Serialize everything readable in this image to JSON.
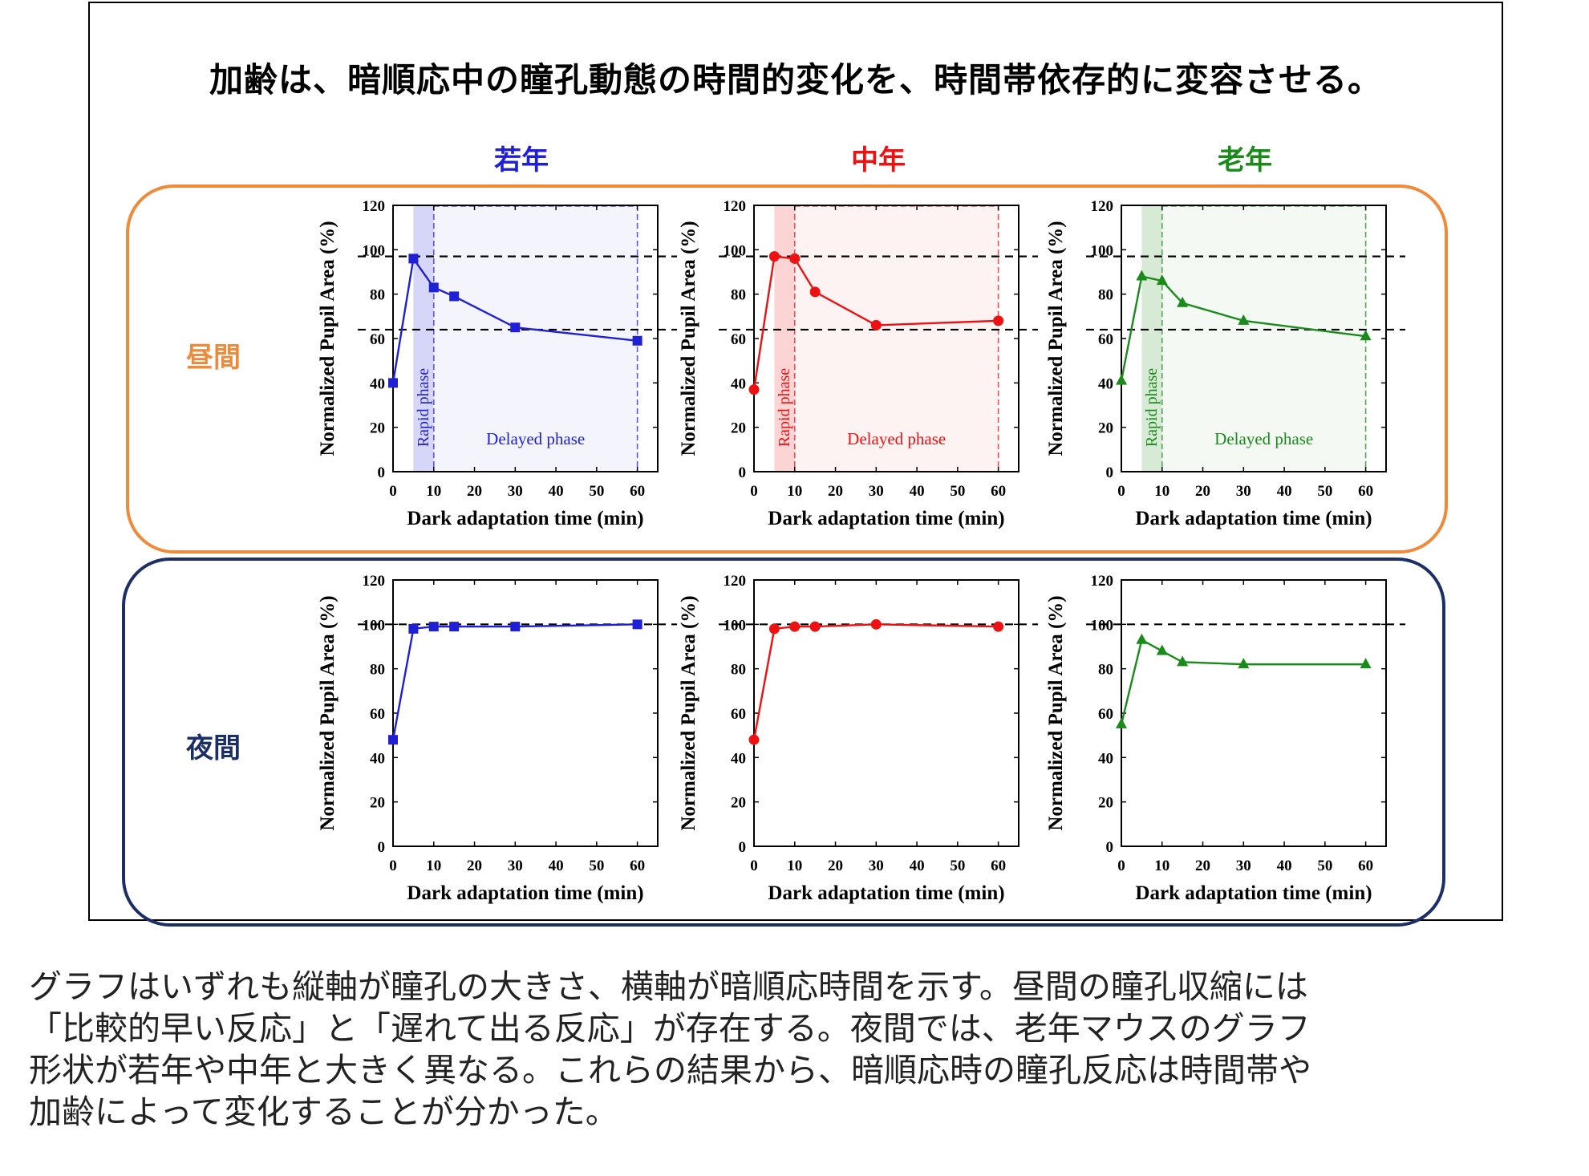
{
  "title": "加齢は、暗順応中の瞳孔動態の時間的変化を、時間帯依存的に変容させる。",
  "columns": [
    {
      "label": "若年",
      "color": "#1f1fd6"
    },
    {
      "label": "中年",
      "color": "#ee1111"
    },
    {
      "label": "老年",
      "color": "#1a8a1a"
    }
  ],
  "rows": [
    {
      "label": "昼間",
      "color": "#ef8a3a"
    },
    {
      "label": "夜間",
      "color": "#1b2e66"
    }
  ],
  "caption_lines": [
    "グラフはいずれも縦軸が瞳孔の大きさ、横軸が暗順応時間を示す。昼間の瞳孔収縮には",
    "「比較的早い反応」と「遅れて出る反応」が存在する。夜間では、老年マウスのグラフ",
    "形状が若年や中年と大きく異なる。これらの結果から、暗順応時の瞳孔反応は時間帯や",
    "加齢によって変化することが分かった。"
  ],
  "chart_common": {
    "xlabel": "Dark adaptation time (min)",
    "ylabel": "Normalized Pupil Area (%)",
    "xticks": [
      0,
      10,
      20,
      30,
      40,
      50,
      60
    ],
    "yticks": [
      0,
      20,
      40,
      60,
      80,
      100,
      120
    ],
    "rapid_phase_label": "Rapid phase",
    "delayed_phase_label": "Delayed phase"
  },
  "chart_data": [
    {
      "type": "line",
      "row": "昼間",
      "column": "若年",
      "color": "#1f1fd6",
      "marker": "square",
      "x": [
        0,
        5,
        10,
        15,
        30,
        60
      ],
      "y": [
        40,
        96,
        83,
        79,
        65,
        59
      ],
      "xlim": [
        0,
        65
      ],
      "ylim": [
        0,
        120
      ],
      "hlines": [
        97,
        64
      ],
      "rapid_phase": [
        5,
        10
      ],
      "delayed_phase": [
        10,
        60
      ]
    },
    {
      "type": "line",
      "row": "昼間",
      "column": "中年",
      "color": "#ee1111",
      "marker": "circle",
      "x": [
        0,
        5,
        10,
        15,
        30,
        60
      ],
      "y": [
        37,
        97,
        96,
        81,
        66,
        68
      ],
      "xlim": [
        0,
        65
      ],
      "ylim": [
        0,
        120
      ],
      "hlines": [
        97,
        64
      ],
      "rapid_phase": [
        5,
        10
      ],
      "delayed_phase": [
        10,
        60
      ]
    },
    {
      "type": "line",
      "row": "昼間",
      "column": "老年",
      "color": "#1a8a1a",
      "marker": "triangle",
      "x": [
        0,
        5,
        10,
        15,
        30,
        60
      ],
      "y": [
        41,
        88,
        86,
        76,
        68,
        61
      ],
      "xlim": [
        0,
        65
      ],
      "ylim": [
        0,
        120
      ],
      "hlines": [
        97,
        64
      ],
      "rapid_phase": [
        5,
        10
      ],
      "delayed_phase": [
        10,
        60
      ]
    },
    {
      "type": "line",
      "row": "夜間",
      "column": "若年",
      "color": "#1f1fd6",
      "marker": "square",
      "x": [
        0,
        5,
        10,
        15,
        30,
        60
      ],
      "y": [
        48,
        98,
        99,
        99,
        99,
        100
      ],
      "xlim": [
        0,
        65
      ],
      "ylim": [
        0,
        120
      ],
      "hlines": [
        100
      ]
    },
    {
      "type": "line",
      "row": "夜間",
      "column": "中年",
      "color": "#ee1111",
      "marker": "circle",
      "x": [
        0,
        5,
        10,
        15,
        30,
        60
      ],
      "y": [
        48,
        98,
        99,
        99,
        100,
        99
      ],
      "xlim": [
        0,
        65
      ],
      "ylim": [
        0,
        120
      ],
      "hlines": [
        100
      ]
    },
    {
      "type": "line",
      "row": "夜間",
      "column": "老年",
      "color": "#1a8a1a",
      "marker": "triangle",
      "x": [
        0,
        5,
        10,
        15,
        30,
        60
      ],
      "y": [
        55,
        93,
        88,
        83,
        82,
        82
      ],
      "xlim": [
        0,
        65
      ],
      "ylim": [
        0,
        120
      ],
      "hlines": [
        100
      ]
    }
  ]
}
